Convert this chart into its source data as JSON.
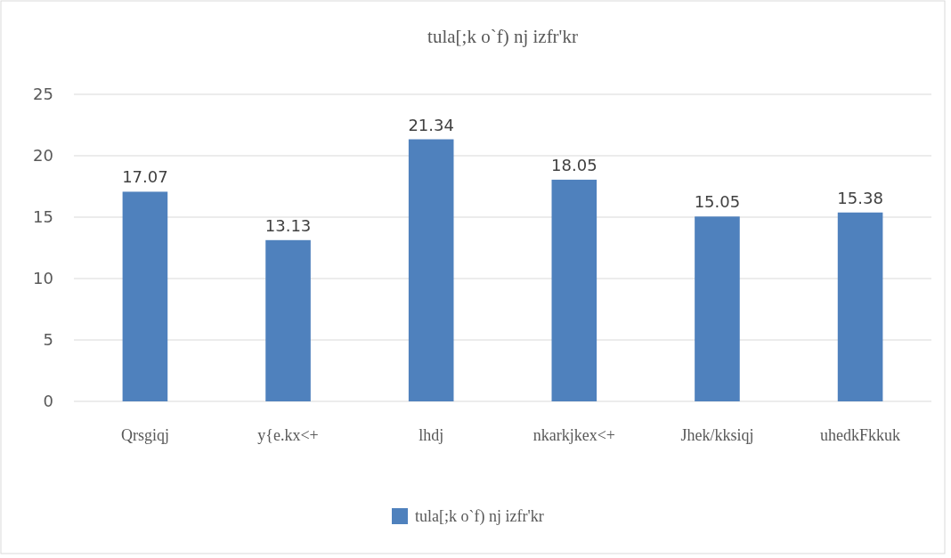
{
  "chart_data": {
    "type": "bar",
    "title": "tula[;k o`f) nj izfr'kr",
    "categories": [
      "Qrsgiqj",
      "y{e.kx<+",
      "lhdj",
      "nkarkjkex<+",
      "Jhek/kksiqj",
      "uhedkFkkuk"
    ],
    "series": [
      {
        "name": "tula[;k o`f) nj izfr'kr",
        "color": "#4f81bd",
        "values": [
          17.07,
          13.13,
          21.34,
          18.05,
          15.05,
          15.38
        ]
      }
    ],
    "ylim": [
      0,
      25
    ],
    "yticks": [
      0,
      5,
      10,
      15,
      20,
      25
    ],
    "grid": "y",
    "legend": "bottom",
    "data_labels": true
  }
}
